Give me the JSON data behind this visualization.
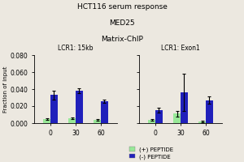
{
  "title_line1": "HCT116 serum response",
  "title_line2": "MED25",
  "title_line3": "Matrix-ChIP",
  "panel1_label": "LCR1: 15kb",
  "panel2_label": "LCR1: Exon1",
  "xlabel_vals": [
    "0",
    "30",
    "60"
  ],
  "ylabel": "Fraction of input",
  "ylim": [
    0,
    0.08
  ],
  "yticks": [
    0.0,
    0.02,
    0.04,
    0.06,
    0.08
  ],
  "ytick_labels": [
    "0.000",
    "0.020",
    "0.040",
    "0.060",
    "0.080"
  ],
  "panel1": {
    "plus_peptide": [
      0.005,
      0.006,
      0.004
    ],
    "minus_peptide": [
      0.033,
      0.038,
      0.026
    ],
    "plus_err": [
      0.001,
      0.001,
      0.001
    ],
    "minus_err": [
      0.005,
      0.003,
      0.002
    ]
  },
  "panel2": {
    "plus_peptide": [
      0.004,
      0.011,
      0.002
    ],
    "minus_peptide": [
      0.015,
      0.036,
      0.027
    ],
    "plus_err": [
      0.001,
      0.003,
      0.001
    ],
    "minus_err": [
      0.003,
      0.022,
      0.004
    ]
  },
  "color_plus": "#98e898",
  "color_minus": "#2020bb",
  "legend_plus": "(+) PEPTIDE",
  "legend_minus": "(-) PEPTIDE",
  "background": "#ece8e0",
  "bar_width": 0.28
}
